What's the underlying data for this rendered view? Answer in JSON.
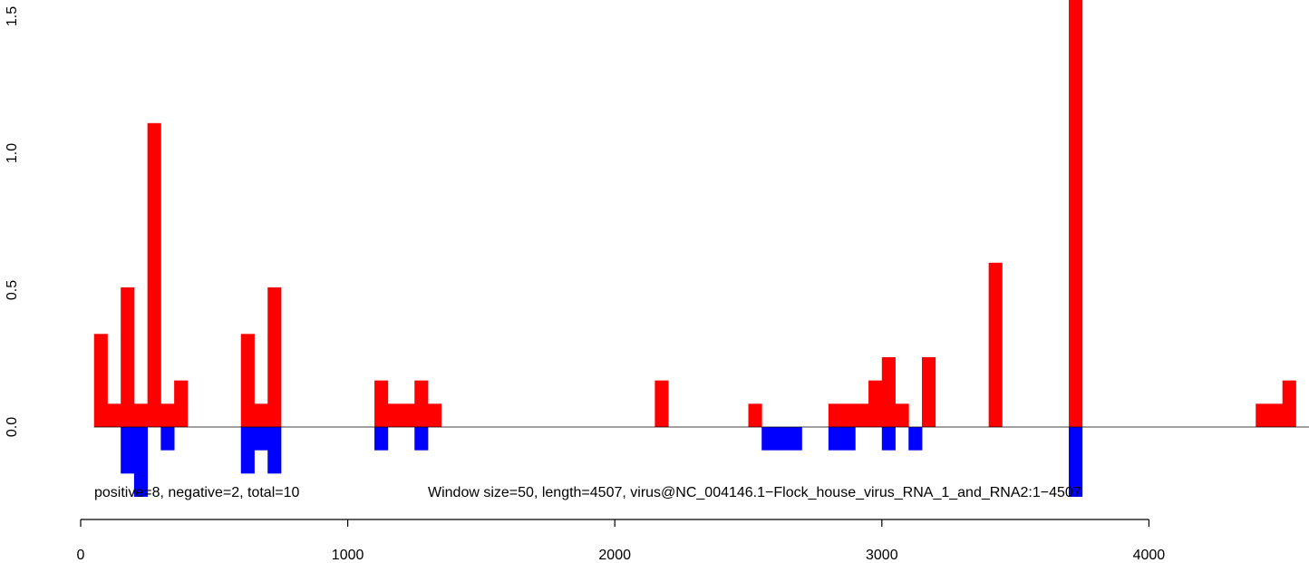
{
  "chart_data": {
    "type": "bar",
    "title": "",
    "xlabel": "",
    "ylabel": "",
    "xlim": [
      0,
      4600
    ],
    "ylim": [
      0,
      1.5
    ],
    "grid": false,
    "bin_width": 50,
    "x_ticks": [
      0,
      1000,
      2000,
      3000,
      4000
    ],
    "x_tick_labels": [
      "0",
      "1000",
      "2000",
      "3000",
      "4000"
    ],
    "y_ticks": [
      0,
      0.5,
      1,
      1.5
    ],
    "y_tick_labels": [
      "0.0",
      "0.5",
      "1.0",
      "1.5"
    ],
    "colors": {
      "positive": "#ff0000",
      "negative": "#0000ff",
      "baseline": "#000000"
    },
    "series": [
      {
        "name": "positive",
        "bins": [
          [
            50,
            0.34
          ],
          [
            100,
            0.085
          ],
          [
            150,
            0.51
          ],
          [
            200,
            0.085
          ],
          [
            250,
            1.11
          ],
          [
            300,
            0.085
          ],
          [
            350,
            0.17
          ],
          [
            600,
            0.34
          ],
          [
            650,
            0.085
          ],
          [
            700,
            0.51
          ],
          [
            1100,
            0.17
          ],
          [
            1150,
            0.085
          ],
          [
            1200,
            0.085
          ],
          [
            1250,
            0.17
          ],
          [
            1300,
            0.085
          ],
          [
            2150,
            0.17
          ],
          [
            2500,
            0.085
          ],
          [
            2800,
            0.085
          ],
          [
            2850,
            0.085
          ],
          [
            2900,
            0.085
          ],
          [
            2950,
            0.17
          ],
          [
            3000,
            0.255
          ],
          [
            3050,
            0.085
          ],
          [
            3150,
            0.255
          ],
          [
            3400,
            0.6
          ],
          [
            3700,
            1.6
          ],
          [
            4400,
            0.085
          ],
          [
            4450,
            0.085
          ],
          [
            4500,
            0.17
          ]
        ]
      },
      {
        "name": "negative",
        "bins": [
          [
            150,
            -0.17
          ],
          [
            200,
            -0.255
          ],
          [
            300,
            -0.085
          ],
          [
            600,
            -0.17
          ],
          [
            650,
            -0.085
          ],
          [
            700,
            -0.17
          ],
          [
            1100,
            -0.085
          ],
          [
            1250,
            -0.085
          ],
          [
            2550,
            -0.085
          ],
          [
            2600,
            -0.085
          ],
          [
            2650,
            -0.085
          ],
          [
            2800,
            -0.085
          ],
          [
            2850,
            -0.085
          ],
          [
            3000,
            -0.085
          ],
          [
            3100,
            -0.085
          ],
          [
            3700,
            -0.255
          ]
        ]
      }
    ],
    "annotations": {
      "counts": "positive=8, negative=2, total=10",
      "info": "Window size=50, length=4507, virus@NC_004146.1−Flock_house_virus_RNA_1_and_RNA2:1−4507"
    }
  }
}
